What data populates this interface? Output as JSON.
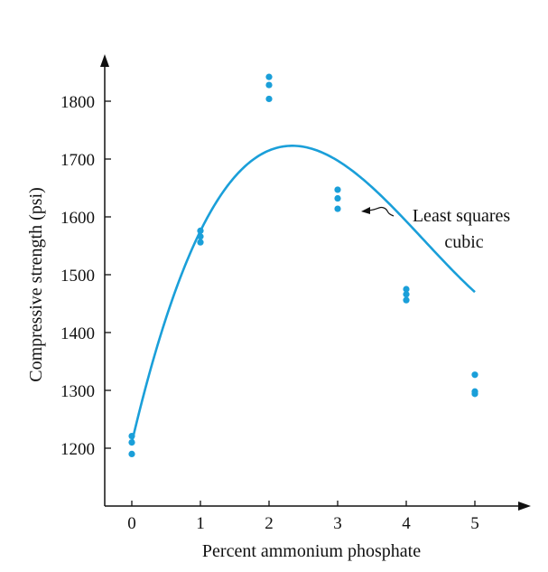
{
  "chart_data": {
    "type": "scatter",
    "xlabel": "Percent ammonium phosphate",
    "ylabel": "Compressive strength (psi)",
    "xlim": [
      -0.4,
      5.7
    ],
    "ylim": [
      1100,
      1880
    ],
    "x_ticks": [
      0,
      1,
      2,
      3,
      4,
      5
    ],
    "y_ticks": [
      1200,
      1300,
      1400,
      1500,
      1600,
      1700,
      1800
    ],
    "grid": false,
    "points": [
      {
        "x": 0,
        "y": 1221
      },
      {
        "x": 0,
        "y": 1210
      },
      {
        "x": 0,
        "y": 1190
      },
      {
        "x": 1,
        "y": 1576
      },
      {
        "x": 1,
        "y": 1566
      },
      {
        "x": 1,
        "y": 1556
      },
      {
        "x": 2,
        "y": 1842
      },
      {
        "x": 2,
        "y": 1828
      },
      {
        "x": 2,
        "y": 1804
      },
      {
        "x": 3,
        "y": 1647
      },
      {
        "x": 3,
        "y": 1632
      },
      {
        "x": 3,
        "y": 1614
      },
      {
        "x": 4,
        "y": 1475
      },
      {
        "x": 4,
        "y": 1466
      },
      {
        "x": 4,
        "y": 1456
      },
      {
        "x": 5,
        "y": 1327
      },
      {
        "x": 5,
        "y": 1298
      },
      {
        "x": 5,
        "y": 1294
      }
    ],
    "fit_curve": {
      "label_line1": "Least squares",
      "label_line2": "cubic",
      "coefficients": [
        1210,
        502,
        -148,
        11.6
      ]
    },
    "colors": {
      "series": "#1a9fd9",
      "axes": "#111111"
    }
  }
}
